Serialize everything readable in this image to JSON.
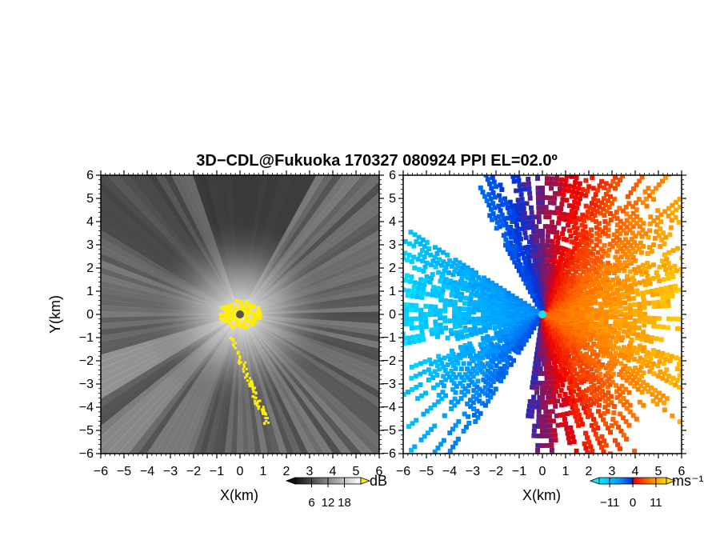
{
  "chart_data": {
    "title": "3D−CDL@Fukuoka 170327 080924 PPI EL=02.0º",
    "panels": [
      {
        "type": "heatmap",
        "quantity": "SNR",
        "xlabel": "X(km)",
        "ylabel": "Y(km)",
        "xlim": [
          -6,
          6
        ],
        "ylim": [
          -6,
          6
        ],
        "x_ticks": [
          "−6",
          "−5",
          "−4",
          "−3",
          "−2",
          "−1",
          "0",
          "1",
          "2",
          "3",
          "4",
          "5",
          "6"
        ],
        "y_ticks": [
          "6",
          "5",
          "4",
          "3",
          "2",
          "1",
          "0",
          "−1",
          "−2",
          "−3",
          "−4",
          "−5",
          "−6"
        ],
        "colorbar": {
          "unit": "dB",
          "ticks": [
            "6",
            "12",
            "18"
          ],
          "tick_values": [
            6,
            12,
            18
          ],
          "range": [
            0,
            24
          ],
          "colors": [
            "#111111",
            "#ffffff"
          ],
          "over_color": "#ffee00",
          "under_color": "#111111"
        },
        "background_color": "#2a2a2a",
        "radar_site": [
          0,
          0
        ]
      },
      {
        "type": "heatmap",
        "quantity": "Doppler velocity",
        "xlabel": "X(km)",
        "xlim": [
          -6,
          6
        ],
        "ylim": [
          -6,
          6
        ],
        "x_ticks": [
          "−6",
          "−5",
          "−4",
          "−3",
          "−2",
          "−1",
          "0",
          "1",
          "2",
          "3",
          "4",
          "5",
          "6"
        ],
        "y_ticks": [
          "6",
          "5",
          "4",
          "3",
          "2",
          "1",
          "0",
          "−1",
          "−2",
          "−3",
          "−4",
          "−5",
          "−6"
        ],
        "colorbar": {
          "unit": "ms⁻¹",
          "ticks": [
            "−11",
            "0",
            "11"
          ],
          "tick_values": [
            -11,
            0,
            11
          ],
          "range": [
            -16,
            16
          ],
          "colors": [
            "#00eeff",
            "#0099ff",
            "#0033dd",
            "#ee0000",
            "#ff7700",
            "#ffdd00"
          ]
        },
        "background_color": "#ffffff",
        "radar_site": [
          0,
          0
        ]
      }
    ]
  }
}
